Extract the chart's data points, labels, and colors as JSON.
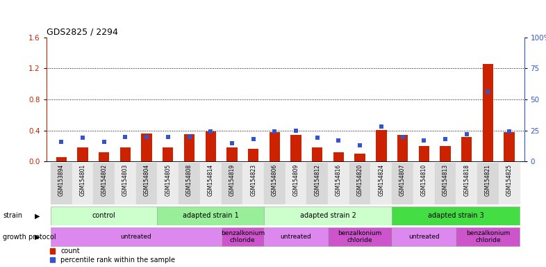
{
  "title": "GDS2825 / 2294",
  "samples": [
    "GSM153894",
    "GSM154801",
    "GSM154802",
    "GSM154803",
    "GSM154804",
    "GSM154805",
    "GSM154808",
    "GSM154814",
    "GSM154819",
    "GSM154823",
    "GSM154806",
    "GSM154809",
    "GSM154812",
    "GSM154816",
    "GSM154820",
    "GSM154824",
    "GSM154807",
    "GSM154810",
    "GSM154813",
    "GSM154818",
    "GSM154821",
    "GSM154825"
  ],
  "red_values": [
    0.06,
    0.18,
    0.12,
    0.18,
    0.36,
    0.18,
    0.35,
    0.39,
    0.18,
    0.16,
    0.38,
    0.34,
    0.18,
    0.12,
    0.1,
    0.41,
    0.34,
    0.2,
    0.2,
    0.32,
    1.26,
    0.38
  ],
  "blue_pct_values": [
    16,
    19,
    16,
    20,
    20,
    20,
    20,
    24,
    15,
    18,
    24,
    25,
    19,
    17,
    13,
    28,
    20,
    17,
    18,
    22,
    56,
    24
  ],
  "strain_groups": [
    {
      "label": "control",
      "start": 0,
      "end": 4,
      "color": "#ccffcc"
    },
    {
      "label": "adapted strain 1",
      "start": 5,
      "end": 9,
      "color": "#99ee99"
    },
    {
      "label": "adapted strain 2",
      "start": 10,
      "end": 15,
      "color": "#ccffcc"
    },
    {
      "label": "adapted strain 3",
      "start": 16,
      "end": 21,
      "color": "#44dd44"
    }
  ],
  "protocol_groups": [
    {
      "label": "untreated",
      "start": 0,
      "end": 7,
      "color": "#dd88ee"
    },
    {
      "label": "benzalkonium\nchloride",
      "start": 8,
      "end": 9,
      "color": "#cc55cc"
    },
    {
      "label": "untreated",
      "start": 10,
      "end": 12,
      "color": "#dd88ee"
    },
    {
      "label": "benzalkonium\nchloride",
      "start": 13,
      "end": 15,
      "color": "#cc55cc"
    },
    {
      "label": "untreated",
      "start": 16,
      "end": 18,
      "color": "#dd88ee"
    },
    {
      "label": "benzalkonium\nchloride",
      "start": 19,
      "end": 21,
      "color": "#cc55cc"
    }
  ],
  "left_ylim": [
    0,
    1.6
  ],
  "left_yticks": [
    0.0,
    0.4,
    0.8,
    1.2,
    1.6
  ],
  "right_ylim": [
    0,
    100
  ],
  "right_yticks": [
    0,
    25,
    50,
    75,
    100
  ],
  "red_color": "#cc2200",
  "blue_color": "#3355cc",
  "background_color": "#ffffff",
  "strain_label": "strain",
  "protocol_label": "growth protocol",
  "legend_red": "count",
  "legend_blue": "percentile rank within the sample",
  "bar_width": 0.5
}
